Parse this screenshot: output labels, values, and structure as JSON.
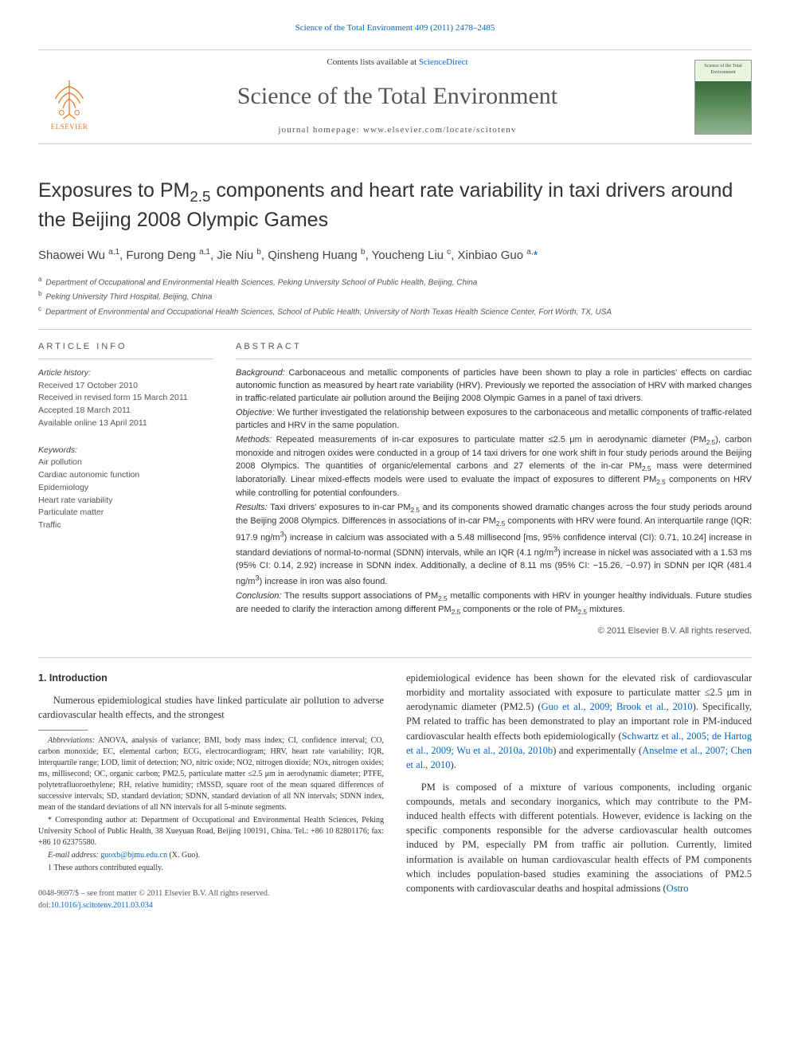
{
  "top_link": {
    "prefix": "",
    "citation": "Science of the Total Environment 409 (2011) 2478–2485"
  },
  "header": {
    "contents_prefix": "Contents lists available at ",
    "contents_link": "ScienceDirect",
    "journal": "Science of the Total Environment",
    "homepage_prefix": "journal homepage: ",
    "homepage_url": "www.elsevier.com/locate/scitotenv",
    "elsevier_label": "ELSEVIER",
    "cover_label": "Science of the Total Environment"
  },
  "article": {
    "title": "Exposures to PM2.5 components and heart rate variability in taxi drivers around the Beijing 2008 Olympic Games",
    "authors_html": "Shaowei Wu <sup>a,1</sup>, Furong Deng <sup>a,1</sup>, Jie Niu <sup>b</sup>, Qinsheng Huang <sup>b</sup>, Youcheng Liu <sup>c</sup>, Xinbiao Guo <sup>a,</sup><span class='corr'>*</span>",
    "affiliations": [
      {
        "sup": "a",
        "text": "Department of Occupational and Environmental Health Sciences, Peking University School of Public Health, Beijing, China"
      },
      {
        "sup": "b",
        "text": "Peking University Third Hospital, Beijing, China"
      },
      {
        "sup": "c",
        "text": "Department of Environmental and Occupational Health Sciences, School of Public Health, University of North Texas Health Science Center, Fort Worth, TX, USA"
      }
    ]
  },
  "article_info": {
    "head": "ARTICLE INFO",
    "history_label": "Article history:",
    "history": [
      "Received 17 October 2010",
      "Received in revised form 15 March 2011",
      "Accepted 18 March 2011",
      "Available online 13 April 2011"
    ],
    "keywords_label": "Keywords:",
    "keywords": [
      "Air pollution",
      "Cardiac autonomic function",
      "Epidemiology",
      "Heart rate variability",
      "Particulate matter",
      "Traffic"
    ]
  },
  "abstract": {
    "head": "ABSTRACT",
    "paragraphs": [
      {
        "label": "Background:",
        "text": " Carbonaceous and metallic components of particles have been shown to play a role in particles' effects on cardiac autonomic function as measured by heart rate variability (HRV). Previously we reported the association of HRV with marked changes in traffic-related particulate air pollution around the Beijing 2008 Olympic Games in a panel of taxi drivers."
      },
      {
        "label": "Objective:",
        "text": " We further investigated the relationship between exposures to the carbonaceous and metallic components of traffic-related particles and HRV in the same population."
      },
      {
        "label": "Methods:",
        "text": " Repeated measurements of in-car exposures to particulate matter ≤2.5 μm in aerodynamic diameter (PM2.5), carbon monoxide and nitrogen oxides were conducted in a group of 14 taxi drivers for one work shift in four study periods around the Beijing 2008 Olympics. The quantities of organic/elemental carbons and 27 elements of the in-car PM2.5 mass were determined laboratorially. Linear mixed-effects models were used to evaluate the impact of exposures to different PM2.5 components on HRV while controlling for potential confounders."
      },
      {
        "label": "Results:",
        "text": " Taxi drivers' exposures to in-car PM2.5 and its components showed dramatic changes across the four study periods around the Beijing 2008 Olympics. Differences in associations of in-car PM2.5 components with HRV were found. An interquartile range (IQR: 917.9 ng/m3) increase in calcium was associated with a 5.48 millisecond [ms, 95% confidence interval (CI): 0.71, 10.24] increase in standard deviations of normal-to-normal (SDNN) intervals, while an IQR (4.1 ng/m3) increase in nickel was associated with a 1.53 ms (95% CI: 0.14, 2.92) increase in SDNN index. Additionally, a decline of 8.11 ms (95% CI: −15.26, −0.97) in SDNN per IQR (481.4 ng/m3) increase in iron was also found."
      },
      {
        "label": "Conclusion:",
        "text": " The results support associations of PM2.5 metallic components with HRV in younger healthy individuals. Future studies are needed to clarify the interaction among different PM2.5 components or the role of PM2.5 mixtures."
      }
    ],
    "copyright": "© 2011 Elsevier B.V. All rights reserved."
  },
  "intro": {
    "heading": "1. Introduction",
    "para1": "Numerous epidemiological studies have linked particulate air pollution to adverse cardiovascular health effects, and the strongest",
    "para2a": "epidemiological evidence has been shown for the elevated risk of cardiovascular morbidity and mortality associated with exposure to particulate matter ≤2.5 μm in aerodynamic diameter (PM2.5) (",
    "para2b": "). Specifically, PM related to traffic has been demonstrated to play an important role in PM-induced cardiovascular health effects both epidemiologically (",
    "para2c": ") and experimentally (",
    "para2d": ").",
    "ref1": "Guo et al., 2009; Brook et al., 2010",
    "ref2": "Schwartz et al., 2005; de Hartog et al., 2009; Wu et al., 2010a, 2010b",
    "ref3": "Anselme et al., 2007; Chen et al., 2010",
    "para3a": "PM is composed of a mixture of various components, including organic compounds, metals and secondary inorganics, which may contribute to the PM-induced health effects with different potentials. However, evidence is lacking on the specific components responsible for the adverse cardiovascular health outcomes induced by PM, especially PM from traffic air pollution. Currently, limited information is available on human cardiovascular health effects of PM components which includes population-based studies examining the associations of PM2.5 components with cardiovascular deaths and hospital admissions (",
    "ref4": "Ostro"
  },
  "footnotes": {
    "abbrev_label": "Abbreviations:",
    "abbrev_text": " ANOVA, analysis of variance; BMI, body mass index; CI, confidence interval; CO, carbon monoxide; EC, elemental carbon; ECG, electrocardiogram; HRV, heart rate variability; IQR, interquartile range; LOD, limit of detection; NO, nitric oxide; NO2, nitrogen dioxide; NOx, nitrogen oxides; ms, millisecond; OC, organic carbon; PM2.5, particulate matter ≤2.5 μm in aerodynamic diameter; PTFE, polytetrafluoroethylene; RH, relative humidity; rMSSD, square root of the mean squared differences of successive intervals; SD, standard deviation; SDNN, standard deviation of all NN intervals; SDNN index, mean of the standard deviations of all NN intervals for all 5-minute segments.",
    "corr_label": "* Corresponding author at:",
    "corr_text": " Department of Occupational and Environmental Health Sciences, Peking University School of Public Health, 38 Xueyuan Road, Beijing 100191, China. Tel.: +86 10 82801176; fax: +86 10 62375580.",
    "email_label": "E-mail address: ",
    "email": "guoxb@bjmu.edu.cn",
    "email_suffix": " (X. Guo).",
    "equal": "1 These authors contributed equally."
  },
  "footer": {
    "line1": "0048-9697/$ – see front matter © 2011 Elsevier B.V. All rights reserved.",
    "doi_prefix": "doi:",
    "doi": "10.1016/j.scitotenv.2011.03.034"
  },
  "colors": {
    "link": "#0066cc",
    "text": "#333333",
    "border": "#cccccc",
    "muted": "#555555"
  }
}
